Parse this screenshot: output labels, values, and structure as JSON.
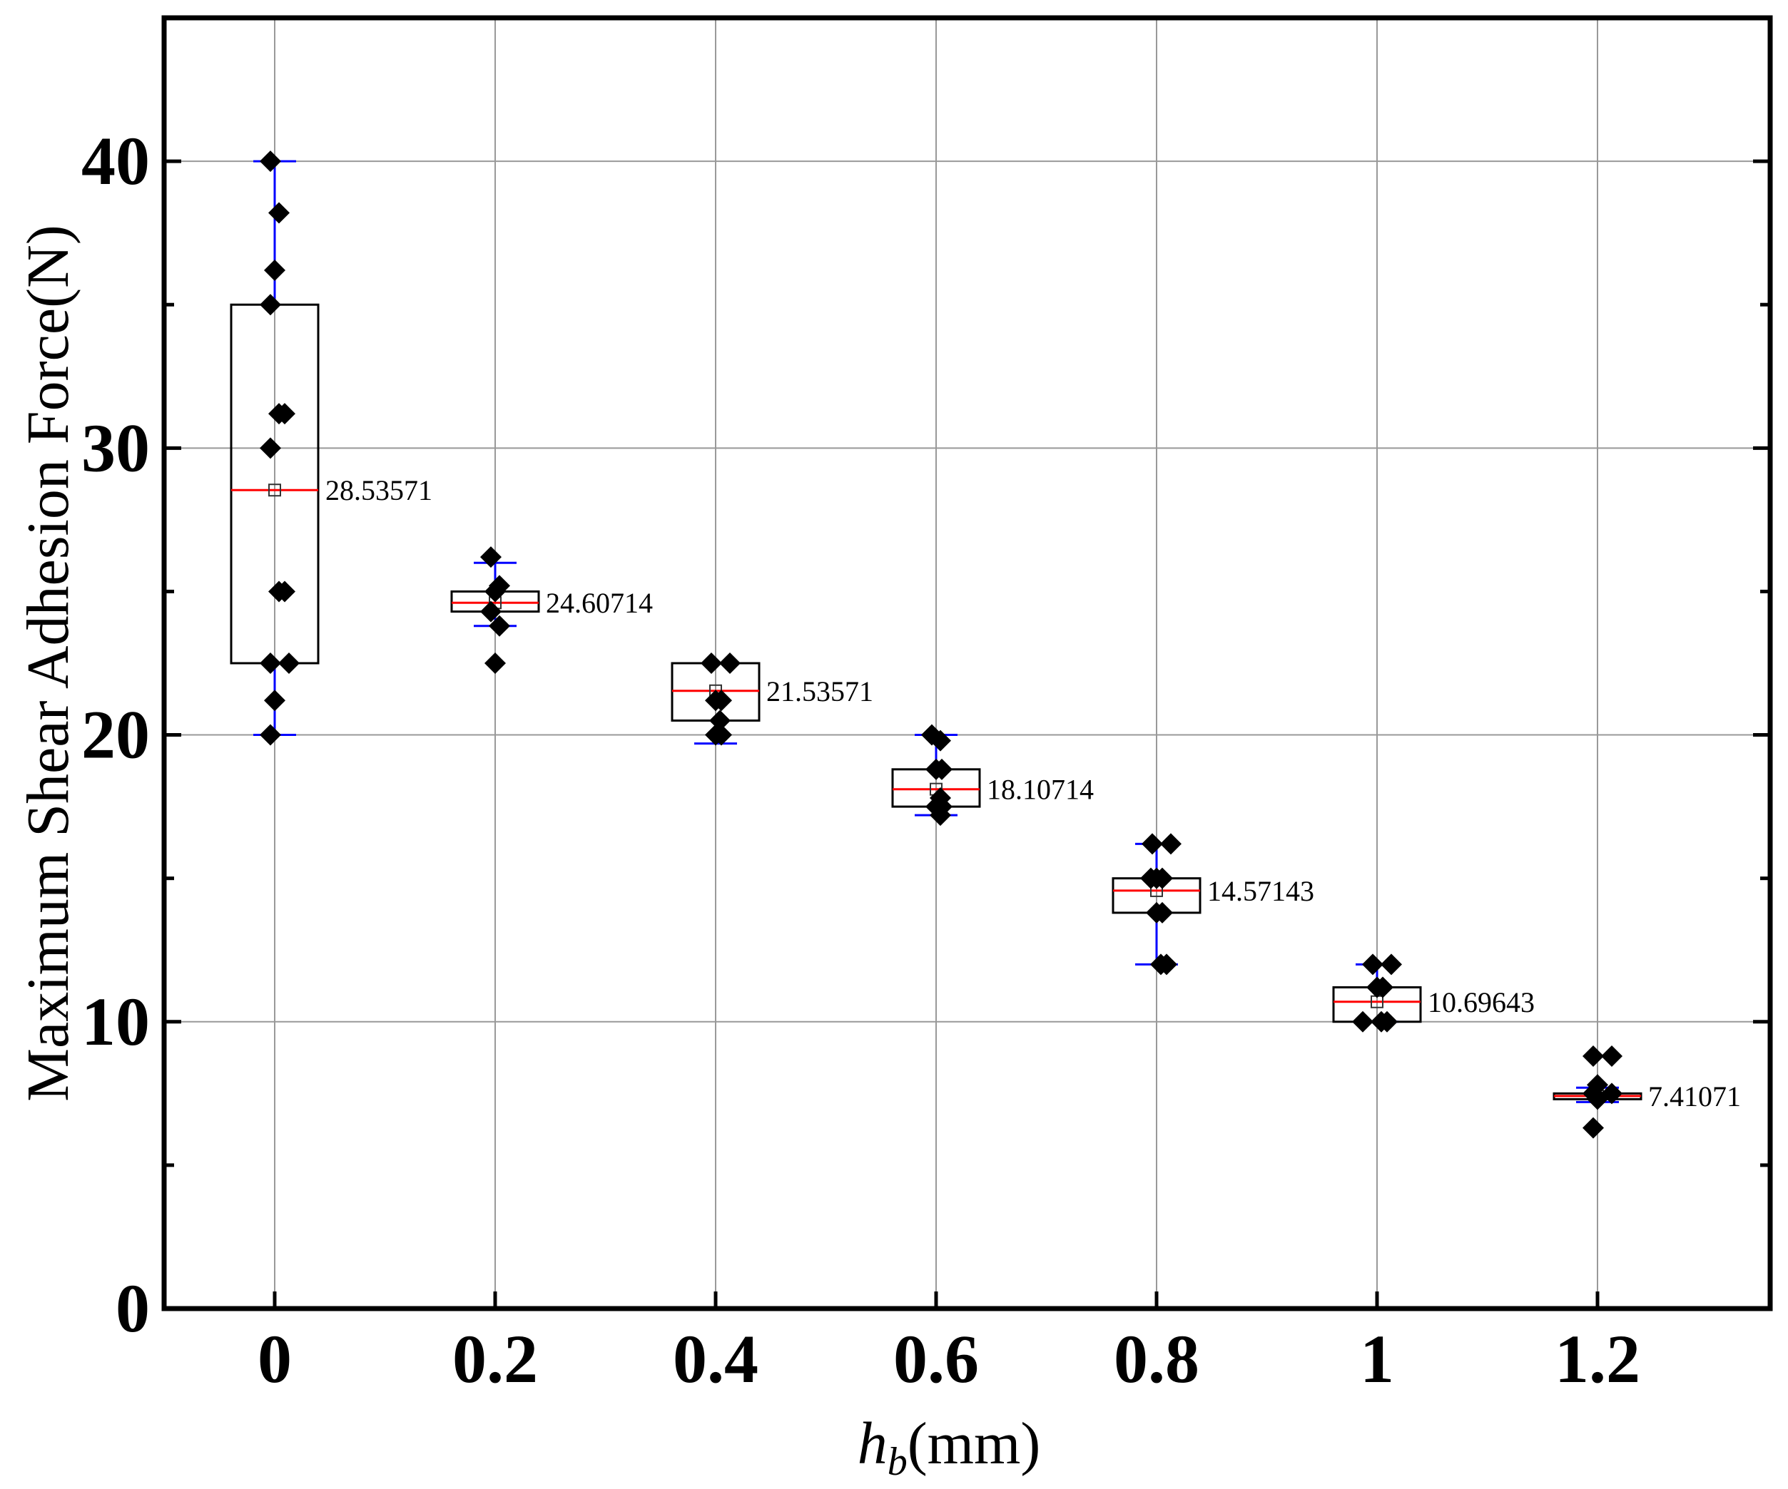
{
  "chart_data": {
    "type": "box",
    "title": "",
    "xlabel": {
      "symbol": "h",
      "subscript": "b",
      "unit": "(mm)"
    },
    "ylabel": "Maximum Shear Adhesion Force(N)",
    "ylim": [
      0,
      45
    ],
    "y_ticks": [
      0,
      10,
      20,
      30,
      40
    ],
    "grid": true,
    "categories": [
      "0",
      "0.2",
      "0.4",
      "0.6",
      "0.8",
      "1",
      "1.2"
    ],
    "series": [
      {
        "category": "0",
        "whisker_low": 20,
        "q1": 22.5,
        "median": 28.53571,
        "mean": 28.53571,
        "q3": 35,
        "whisker_high": 40,
        "mean_label": "28.53571",
        "points": [
          40,
          38.2,
          36.2,
          35,
          31.2,
          31.2,
          30,
          25,
          25,
          22.5,
          22.5,
          21.2,
          20
        ]
      },
      {
        "category": "0.2",
        "whisker_low": 23.8,
        "q1": 24.3,
        "median": 24.60714,
        "mean": 24.60714,
        "q3": 25,
        "whisker_high": 26,
        "mean_label": "24.60714",
        "points": [
          26.2,
          25.2,
          25,
          24.3,
          23.8,
          22.5
        ]
      },
      {
        "category": "0.4",
        "whisker_low": 19.7,
        "q1": 20.5,
        "median": 21.53571,
        "mean": 21.53571,
        "q3": 22.5,
        "whisker_high": 22.5,
        "mean_label": "21.53571",
        "points": [
          22.5,
          22.5,
          21.2,
          21.2,
          20.5,
          20,
          20
        ]
      },
      {
        "category": "0.6",
        "whisker_low": 17.2,
        "q1": 17.5,
        "median": 18.10714,
        "mean": 18.10714,
        "q3": 18.8,
        "whisker_high": 20,
        "mean_label": "18.10714",
        "points": [
          20,
          19.8,
          18.8,
          18.8,
          17.8,
          17.5,
          17.5,
          17.2
        ]
      },
      {
        "category": "0.8",
        "whisker_low": 12,
        "q1": 13.8,
        "median": 14.57143,
        "mean": 14.57143,
        "q3": 15,
        "whisker_high": 16.2,
        "mean_label": "14.57143",
        "points": [
          16.2,
          16.2,
          15,
          15,
          15,
          13.8,
          13.8,
          12,
          12
        ]
      },
      {
        "category": "1",
        "whisker_low": 10,
        "q1": 10,
        "median": 10.69643,
        "mean": 10.69643,
        "q3": 11.2,
        "whisker_high": 12,
        "mean_label": "10.69643",
        "points": [
          12,
          12,
          11.2,
          11.2,
          10,
          10,
          10
        ]
      },
      {
        "category": "1.2",
        "whisker_low": 7.2,
        "q1": 7.3,
        "median": 7.41071,
        "mean": 7.41071,
        "q3": 7.5,
        "whisker_high": 7.7,
        "mean_label": "7.41071",
        "points": [
          8.8,
          8.8,
          7.8,
          7.5,
          7.5,
          7.3,
          6.3
        ]
      }
    ],
    "colors": {
      "box": "#000000",
      "median_line": "#ff0000",
      "whisker": "#0000ff",
      "points": "#000000",
      "grid": "#999999",
      "frame": "#000000"
    }
  }
}
